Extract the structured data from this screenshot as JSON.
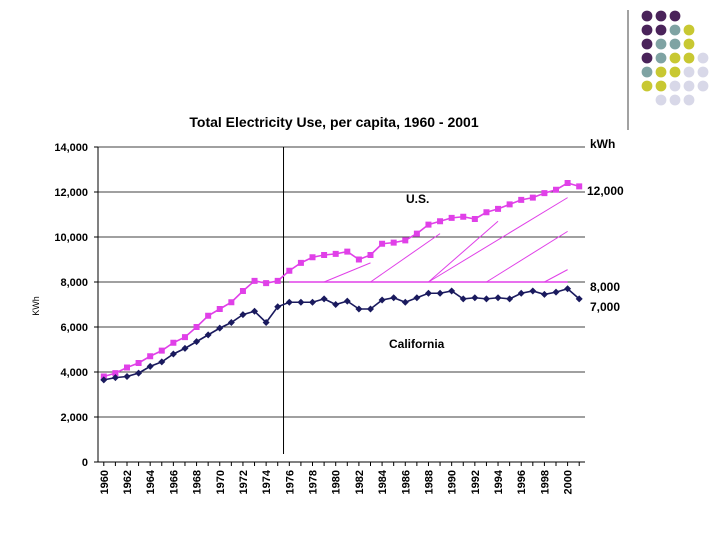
{
  "chart_data": {
    "type": "line",
    "title": "Total Electricity Use,  per capita, 1960 - 2001",
    "xlabel": "",
    "ylabel": "KWh",
    "ylim": [
      0,
      14000
    ],
    "yticks": [
      "0",
      "2,000",
      "4,000",
      "6,000",
      "8,000",
      "10,000",
      "12,000",
      "14,000"
    ],
    "x": [
      1960,
      1961,
      1962,
      1963,
      1964,
      1965,
      1966,
      1967,
      1968,
      1969,
      1970,
      1971,
      1972,
      1973,
      1974,
      1975,
      1976,
      1977,
      1978,
      1979,
      1980,
      1981,
      1982,
      1983,
      1984,
      1985,
      1986,
      1987,
      1988,
      1989,
      1990,
      1991,
      1992,
      1993,
      1994,
      1995,
      1996,
      1997,
      1998,
      1999,
      2000,
      2001
    ],
    "xticks": [
      "1960",
      "1962",
      "1964",
      "1966",
      "1968",
      "1970",
      "1972",
      "1974",
      "1976",
      "1978",
      "1980",
      "1982",
      "1984",
      "1986",
      "1988",
      "1990",
      "1992",
      "1994",
      "1996",
      "1998",
      "2000"
    ],
    "series": [
      {
        "name": "U.S.",
        "color": "#e040e8",
        "values": [
          3800,
          3950,
          4200,
          4400,
          4700,
          4950,
          5300,
          5550,
          6000,
          6500,
          6800,
          7100,
          7600,
          8050,
          7950,
          8050,
          8500,
          8850,
          9100,
          9200,
          9250,
          9350,
          9000,
          9200,
          9700,
          9750,
          9850,
          10150,
          10550,
          10700,
          10850,
          10900,
          10800,
          11100,
          11250,
          11450,
          11650,
          11750,
          11950,
          12100,
          12400,
          12250
        ]
      },
      {
        "name": "California",
        "color": "#1a1a5e",
        "values": [
          3650,
          3750,
          3800,
          3950,
          4250,
          4450,
          4800,
          5050,
          5350,
          5650,
          5950,
          6200,
          6550,
          6700,
          6200,
          6900,
          7100,
          7100,
          7100,
          7250,
          7000,
          7150,
          6800,
          6800,
          7200,
          7300,
          7100,
          7300,
          7500,
          7500,
          7600,
          7250,
          7300,
          7250,
          7300,
          7250,
          7500,
          7600,
          7450,
          7550,
          7700,
          7250
        ]
      }
    ],
    "vline_year": 1975.5,
    "reference_line": {
      "value": 8000,
      "from_year": 1976,
      "to_year": 2000
    },
    "hatch_segments": [
      {
        "x0": 1979,
        "y0": 8000,
        "x1": 1983,
        "y1": 8850
      },
      {
        "x0": 1983,
        "y0": 8000,
        "x1": 1989,
        "y1": 10150
      },
      {
        "x0": 1988,
        "y0": 8000,
        "x1": 1994,
        "y1": 10700
      },
      {
        "x0": 1988,
        "y0": 8000,
        "x1": 2000,
        "y1": 11750
      },
      {
        "x0": 1993,
        "y0": 8000,
        "x1": 2000,
        "y1": 10250
      },
      {
        "x0": 1998,
        "y0": 8000,
        "x1": 2000,
        "y1": 8550
      }
    ],
    "annotations": {
      "unit": "kWh",
      "us_label": "U.S.",
      "ca_label": "California",
      "us_value": "12,000",
      "ref_value": "8,000",
      "ca_value": "7,000"
    }
  },
  "theme": {
    "dot_colors": [
      "#4a235a",
      "#7fa3a3",
      "#c8c832",
      "#d8d8e8"
    ]
  }
}
